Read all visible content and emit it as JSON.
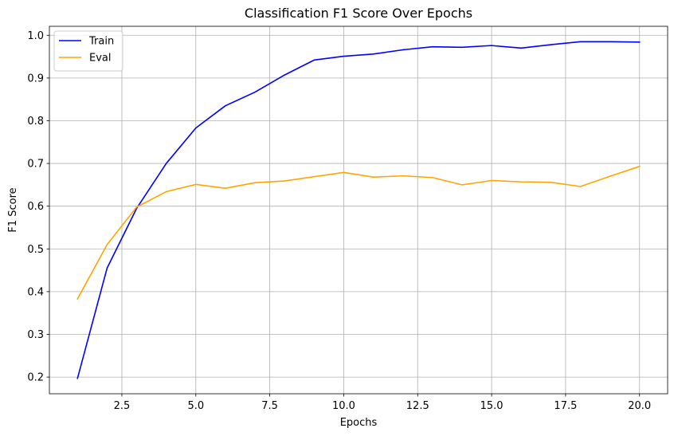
{
  "chart_data": {
    "type": "line",
    "title": "Classification F1 Score Over Epochs",
    "xlabel": "Epochs",
    "ylabel": "F1 Score",
    "xlim": [
      0.05,
      20.95
    ],
    "ylim": [
      0.161,
      1.021
    ],
    "xticks": [
      2.5,
      5.0,
      7.5,
      10.0,
      12.5,
      15.0,
      17.5,
      20.0
    ],
    "xtick_labels": [
      "2.5",
      "5.0",
      "7.5",
      "10.0",
      "12.5",
      "15.0",
      "17.5",
      "20.0"
    ],
    "yticks": [
      0.2,
      0.3,
      0.4,
      0.5,
      0.6,
      0.7,
      0.8,
      0.9,
      1.0
    ],
    "ytick_labels": [
      "0.2",
      "0.3",
      "0.4",
      "0.5",
      "0.6",
      "0.7",
      "0.8",
      "0.9",
      "1.0"
    ],
    "grid": true,
    "legend_position": "top-left",
    "x": [
      1,
      2,
      3,
      4,
      5,
      6,
      7,
      8,
      9,
      10,
      11,
      12,
      13,
      14,
      15,
      16,
      17,
      18,
      19,
      20
    ],
    "series": [
      {
        "name": "Train",
        "color": "#0000ff",
        "values": [
          0.197,
          0.455,
          0.595,
          0.7,
          0.783,
          0.835,
          0.867,
          0.907,
          0.942,
          0.951,
          0.956,
          0.966,
          0.973,
          0.972,
          0.976,
          0.97,
          0.978,
          0.985,
          0.985,
          0.984
        ]
      },
      {
        "name": "Eval",
        "color": "#ffa500",
        "values": [
          0.383,
          0.51,
          0.598,
          0.634,
          0.651,
          0.642,
          0.655,
          0.659,
          0.669,
          0.679,
          0.668,
          0.671,
          0.667,
          0.65,
          0.66,
          0.657,
          0.656,
          0.646,
          0.67,
          0.693
        ]
      }
    ]
  }
}
